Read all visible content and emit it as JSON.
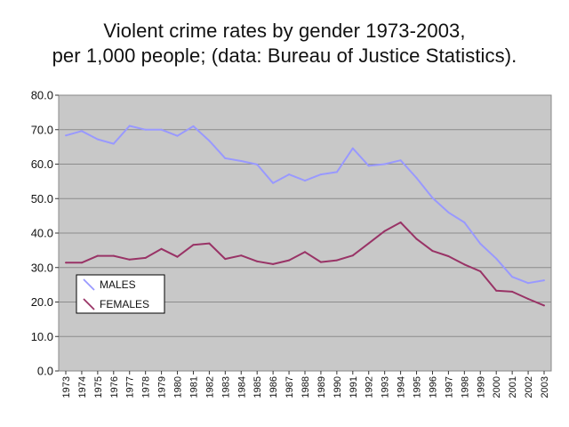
{
  "chart_data": {
    "type": "line",
    "title_line1": "Violent crime rates by gender 1973-2003,",
    "title_line2": "per 1,000 people; (data: Bureau of Justice Statistics).",
    "xlabel": "",
    "ylabel": "",
    "ylim": [
      0,
      80
    ],
    "yticks": [
      "0.0",
      "10.0",
      "20.0",
      "30.0",
      "40.0",
      "50.0",
      "60.0",
      "70.0",
      "80.0"
    ],
    "categories": [
      "1973",
      "1974",
      "1975",
      "1976",
      "1977",
      "1978",
      "1979",
      "1980",
      "1981",
      "1982",
      "1983",
      "1984",
      "1985",
      "1986",
      "1987",
      "1988",
      "1989",
      "1990",
      "1991",
      "1992",
      "1993",
      "1994",
      "1995",
      "1996",
      "1997",
      "1998",
      "1999",
      "2000",
      "2001",
      "2002",
      "2003"
    ],
    "grid": true,
    "legend_position": "left",
    "series": [
      {
        "name": "MALES",
        "color": "#9999ff",
        "values": [
          68.3,
          69.6,
          67.2,
          65.9,
          71.1,
          70.0,
          70.0,
          68.2,
          71.0,
          66.8,
          61.7,
          60.9,
          59.9,
          54.5,
          57.0,
          55.2,
          57.0,
          57.7,
          64.6,
          59.5,
          60.0,
          61.1,
          56.0,
          50.2,
          46.0,
          43.1,
          36.9,
          32.6,
          27.3,
          25.5,
          26.3
        ]
      },
      {
        "name": "FEMALES",
        "color": "#993366",
        "values": [
          31.4,
          31.4,
          33.4,
          33.4,
          32.3,
          32.8,
          35.4,
          33.1,
          36.6,
          37.0,
          32.5,
          33.5,
          31.8,
          31.0,
          32.1,
          34.5,
          31.6,
          32.1,
          33.5,
          37.0,
          40.6,
          43.1,
          38.3,
          34.8,
          33.3,
          30.9,
          28.9,
          23.3,
          23.0,
          20.9,
          19.0
        ]
      }
    ]
  }
}
